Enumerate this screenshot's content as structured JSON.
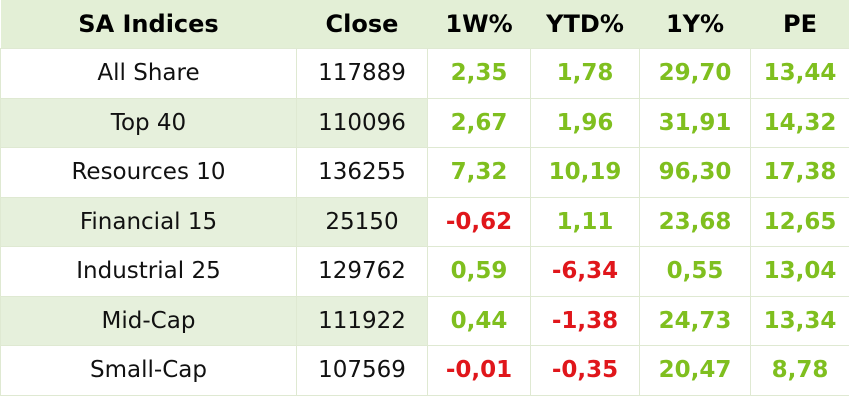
{
  "table": {
    "headers": [
      "SA Indices",
      "Close",
      "1W%",
      "YTD%",
      "1Y%",
      "PE"
    ],
    "rows": [
      {
        "name": "All Share",
        "close": "117889",
        "w1": "2,35",
        "ytd": "1,78",
        "y1": "29,70",
        "pe": "13,44"
      },
      {
        "name": "Top 40",
        "close": "110096",
        "w1": "2,67",
        "ytd": "1,96",
        "y1": "31,91",
        "pe": "14,32"
      },
      {
        "name": "Resources 10",
        "close": "136255",
        "w1": "7,32",
        "ytd": "10,19",
        "y1": "96,30",
        "pe": "17,38"
      },
      {
        "name": "Financial 15",
        "close": "25150",
        "w1": "-0,62",
        "ytd": "1,11",
        "y1": "23,68",
        "pe": "12,65"
      },
      {
        "name": "Industrial 25",
        "close": "129762",
        "w1": "0,59",
        "ytd": "-6,34",
        "y1": "0,55",
        "pe": "13,04"
      },
      {
        "name": "Mid-Cap",
        "close": "111922",
        "w1": "0,44",
        "ytd": "-1,38",
        "y1": "24,73",
        "pe": "13,34"
      },
      {
        "name": "Small-Cap",
        "close": "107569",
        "w1": "-0,01",
        "ytd": "-0,35",
        "y1": "20,47",
        "pe": "8,78"
      }
    ]
  },
  "colors": {
    "positive": "#7fbf1f",
    "negative": "#e0161b",
    "header_bg": "#e3efd6",
    "stripe_bg": "#e6f0dc"
  }
}
